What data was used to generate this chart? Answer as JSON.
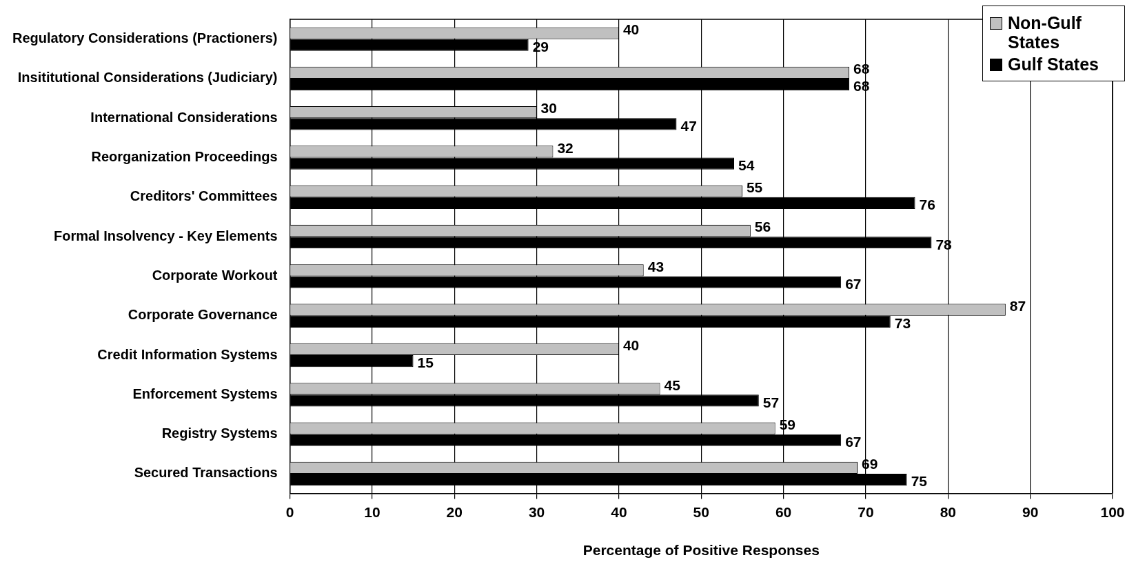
{
  "chart_data": {
    "type": "bar",
    "orientation": "horizontal",
    "xlabel": "Percentage of Positive Responses",
    "categories": [
      "Regulatory Considerations (Practioners)",
      "Insititutional Considerations (Judiciary)",
      "International Considerations",
      "Reorganization Proceedings",
      "Creditors' Committees",
      "Formal Insolvency - Key Elements",
      "Corporate Workout",
      "Corporate Governance",
      "Credit Information Systems",
      "Enforcement Systems",
      "Registry Systems",
      "Secured Transactions"
    ],
    "series": [
      {
        "name": "Non-Gulf States",
        "color": "#c0c0c0",
        "values": [
          40,
          68,
          30,
          32,
          55,
          56,
          43,
          87,
          40,
          45,
          59,
          69
        ]
      },
      {
        "name": "Gulf States",
        "color": "#000000",
        "values": [
          29,
          68,
          47,
          54,
          76,
          78,
          67,
          73,
          15,
          57,
          67,
          75
        ]
      }
    ],
    "xlim": [
      0,
      100
    ],
    "xticks": [
      0,
      10,
      20,
      30,
      40,
      50,
      60,
      70,
      80,
      90,
      100
    ],
    "grid": "x",
    "legend": "top right",
    "data_labels": true
  }
}
